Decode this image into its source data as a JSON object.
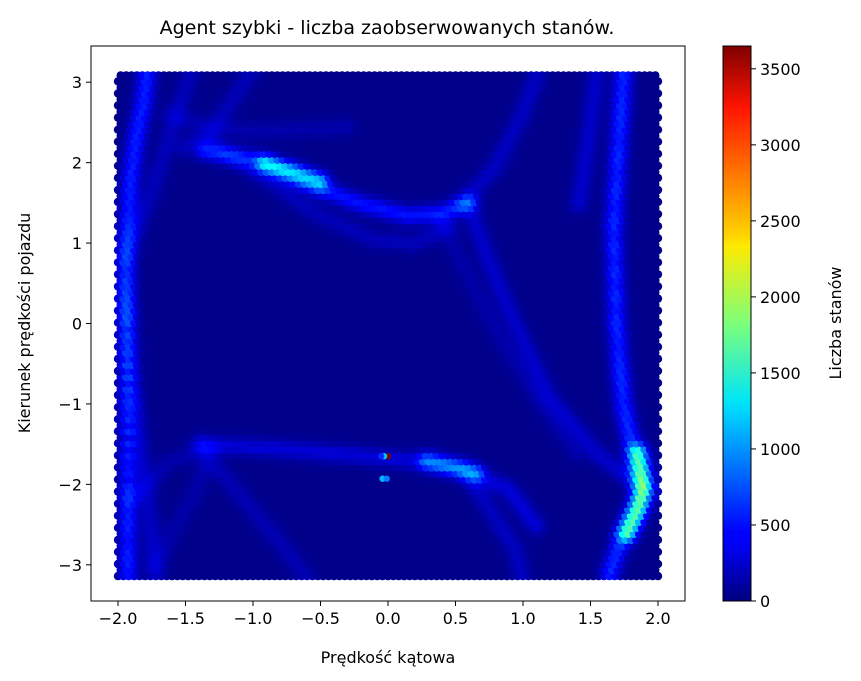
{
  "chart_data": {
    "type": "heatmap",
    "subtype": "hexbin",
    "title": "Agent szybki - liczba zaobserwowanych stanów.",
    "xlabel": "Prędkość kątowa",
    "ylabel": "Kierunek prędkości pojazdu",
    "xlim": [
      -2.2,
      2.2
    ],
    "ylim": [
      -3.45,
      3.45
    ],
    "data_extent": {
      "x": [
        -2.0,
        2.0
      ],
      "y": [
        -3.14,
        3.14
      ]
    },
    "x_ticks": [
      -2.0,
      -1.5,
      -1.0,
      -0.5,
      0.0,
      0.5,
      1.0,
      1.5,
      2.0
    ],
    "x_tick_labels": [
      "−2.0",
      "−1.5",
      "−1.0",
      "−0.5",
      "0.0",
      "0.5",
      "1.0",
      "1.5",
      "2.0"
    ],
    "y_ticks": [
      -3,
      -2,
      -1,
      0,
      1,
      2,
      3
    ],
    "y_tick_labels": [
      "−3",
      "−2",
      "−1",
      "0",
      "1",
      "2",
      "3"
    ],
    "colormap": "jet",
    "colorbar": {
      "label": "Liczba stanów",
      "range": [
        0,
        3650
      ],
      "ticks": [
        0,
        500,
        1000,
        1500,
        2000,
        2500,
        3000,
        3500
      ],
      "tick_labels": [
        "0",
        "500",
        "1000",
        "1500",
        "2000",
        "2500",
        "3000",
        "3500"
      ]
    },
    "background_count": 40,
    "bands": [
      {
        "name": "left-edge-band",
        "points": [
          [
            -1.92,
            -3.1
          ],
          [
            -1.92,
            -2.0
          ],
          [
            -1.93,
            0.0
          ],
          [
            -1.93,
            1.0
          ],
          [
            -1.9,
            1.8
          ],
          [
            -1.86,
            2.3
          ],
          [
            -1.8,
            2.8
          ],
          [
            -1.78,
            3.1
          ]
        ],
        "count": 520
      },
      {
        "name": "left-edge-band-2",
        "points": [
          [
            -1.72,
            -3.1
          ],
          [
            -1.75,
            -2.5
          ],
          [
            -1.82,
            -1.6
          ],
          [
            -1.9,
            -0.5
          ],
          [
            -1.95,
            0.5
          ]
        ],
        "count": 200
      },
      {
        "name": "left-arc-upper",
        "points": [
          [
            -1.95,
            0.8
          ],
          [
            -1.75,
            1.6
          ],
          [
            -1.6,
            2.4
          ],
          [
            -1.45,
            3.14
          ]
        ],
        "count": 170
      },
      {
        "name": "left-diagonal-top",
        "points": [
          [
            -1.5,
            2.2
          ],
          [
            -1.3,
            2.4
          ],
          [
            -1.1,
            2.9
          ],
          [
            -1.0,
            3.14
          ]
        ],
        "count": 160
      },
      {
        "name": "upper-arc",
        "points": [
          [
            -1.35,
            2.15
          ],
          [
            -1.0,
            2.05
          ],
          [
            -0.6,
            1.75
          ],
          [
            -0.2,
            1.5
          ],
          [
            0.15,
            1.35
          ],
          [
            0.4,
            1.38
          ],
          [
            0.6,
            1.5
          ]
        ],
        "count": 470
      },
      {
        "name": "upper-arc-hot",
        "points": [
          [
            -0.9,
            2.0
          ],
          [
            -0.7,
            1.9
          ],
          [
            -0.5,
            1.78
          ]
        ],
        "count": 900
      },
      {
        "name": "upper-arc-2",
        "points": [
          [
            -1.3,
            2.25
          ],
          [
            -0.9,
            1.8
          ],
          [
            -0.5,
            1.35
          ],
          [
            -0.1,
            1.05
          ],
          [
            0.2,
            1.0
          ],
          [
            0.45,
            1.2
          ]
        ],
        "count": 170
      },
      {
        "name": "upper-right-diagonal",
        "points": [
          [
            0.55,
            1.5
          ],
          [
            0.8,
            1.95
          ],
          [
            1.0,
            2.6
          ],
          [
            1.12,
            3.14
          ]
        ],
        "count": 200
      },
      {
        "name": "mid-diagonal",
        "points": [
          [
            0.6,
            1.5
          ],
          [
            0.75,
            0.8
          ],
          [
            0.95,
            0.0
          ],
          [
            1.2,
            -0.9
          ],
          [
            1.55,
            -1.6
          ],
          [
            1.85,
            -2.0
          ]
        ],
        "count": 230
      },
      {
        "name": "mid-diagonal-2",
        "points": [
          [
            0.4,
            1.3
          ],
          [
            0.6,
            0.6
          ],
          [
            0.85,
            -0.2
          ],
          [
            1.15,
            -1.0
          ],
          [
            1.4,
            -1.6
          ]
        ],
        "count": 110
      },
      {
        "name": "right-band",
        "points": [
          [
            1.75,
            3.1
          ],
          [
            1.72,
            2.3
          ],
          [
            1.68,
            1.2
          ],
          [
            1.7,
            0.0
          ],
          [
            1.75,
            -1.0
          ],
          [
            1.85,
            -1.8
          ],
          [
            1.9,
            -2.1
          ],
          [
            1.75,
            -2.6
          ],
          [
            1.65,
            -3.1
          ]
        ],
        "count": 560
      },
      {
        "name": "right-band-hot",
        "points": [
          [
            1.86,
            -1.6
          ],
          [
            1.9,
            -2.0
          ],
          [
            1.86,
            -2.3
          ],
          [
            1.78,
            -2.6
          ]
        ],
        "count": 1150
      },
      {
        "name": "right-upper-band",
        "points": [
          [
            1.55,
            3.1
          ],
          [
            1.5,
            2.4
          ],
          [
            1.45,
            1.8
          ],
          [
            1.42,
            1.5
          ]
        ],
        "count": 230
      },
      {
        "name": "lower-arc",
        "points": [
          [
            -1.35,
            -1.5
          ],
          [
            -0.8,
            -1.55
          ],
          [
            -0.3,
            -1.62
          ],
          [
            0.2,
            -1.7
          ],
          [
            0.55,
            -1.8
          ],
          [
            0.9,
            -2.05
          ],
          [
            1.1,
            -2.5
          ]
        ],
        "count": 280
      },
      {
        "name": "lower-arc-hot",
        "points": [
          [
            0.3,
            -1.7
          ],
          [
            0.5,
            -1.78
          ],
          [
            0.65,
            -1.85
          ]
        ],
        "count": 650
      },
      {
        "name": "lower-arc-2",
        "points": [
          [
            -1.4,
            -1.5
          ],
          [
            -1.1,
            -2.1
          ],
          [
            -0.8,
            -2.7
          ],
          [
            -0.6,
            -3.14
          ]
        ],
        "count": 150
      },
      {
        "name": "lower-right-diagonal",
        "points": [
          [
            0.6,
            -1.9
          ],
          [
            0.8,
            -2.4
          ],
          [
            0.95,
            -2.8
          ],
          [
            1.0,
            -3.14
          ]
        ],
        "count": 190
      },
      {
        "name": "lower-left-arc",
        "points": [
          [
            -1.9,
            -2.2
          ],
          [
            -1.6,
            -1.7
          ],
          [
            -1.3,
            -1.55
          ]
        ],
        "count": 120
      },
      {
        "name": "faint-top-left",
        "points": [
          [
            -1.6,
            2.6
          ],
          [
            -1.3,
            2.45
          ],
          [
            -1.0,
            2.4
          ],
          [
            -0.6,
            2.42
          ],
          [
            -0.3,
            2.45
          ]
        ],
        "count": 120
      },
      {
        "name": "faint-left-wing",
        "points": [
          [
            -1.7,
            -3.0
          ],
          [
            -1.6,
            -2.6
          ],
          [
            -1.45,
            -2.2
          ],
          [
            -1.35,
            -1.8
          ]
        ],
        "count": 110
      }
    ],
    "hotspots": [
      {
        "name": "hotspot-peak",
        "x": 0.0,
        "y": -1.65,
        "count": 3650
      },
      {
        "name": "hotspot-cyan",
        "x": -0.03,
        "y": -1.65,
        "count": 1200
      },
      {
        "name": "hotspot-blue",
        "x": -0.05,
        "y": -1.65,
        "count": 600
      },
      {
        "name": "hotspot-line-a",
        "x": -0.04,
        "y": -1.93,
        "count": 1100
      },
      {
        "name": "hotspot-line-b",
        "x": -0.01,
        "y": -1.93,
        "count": 900
      }
    ]
  }
}
